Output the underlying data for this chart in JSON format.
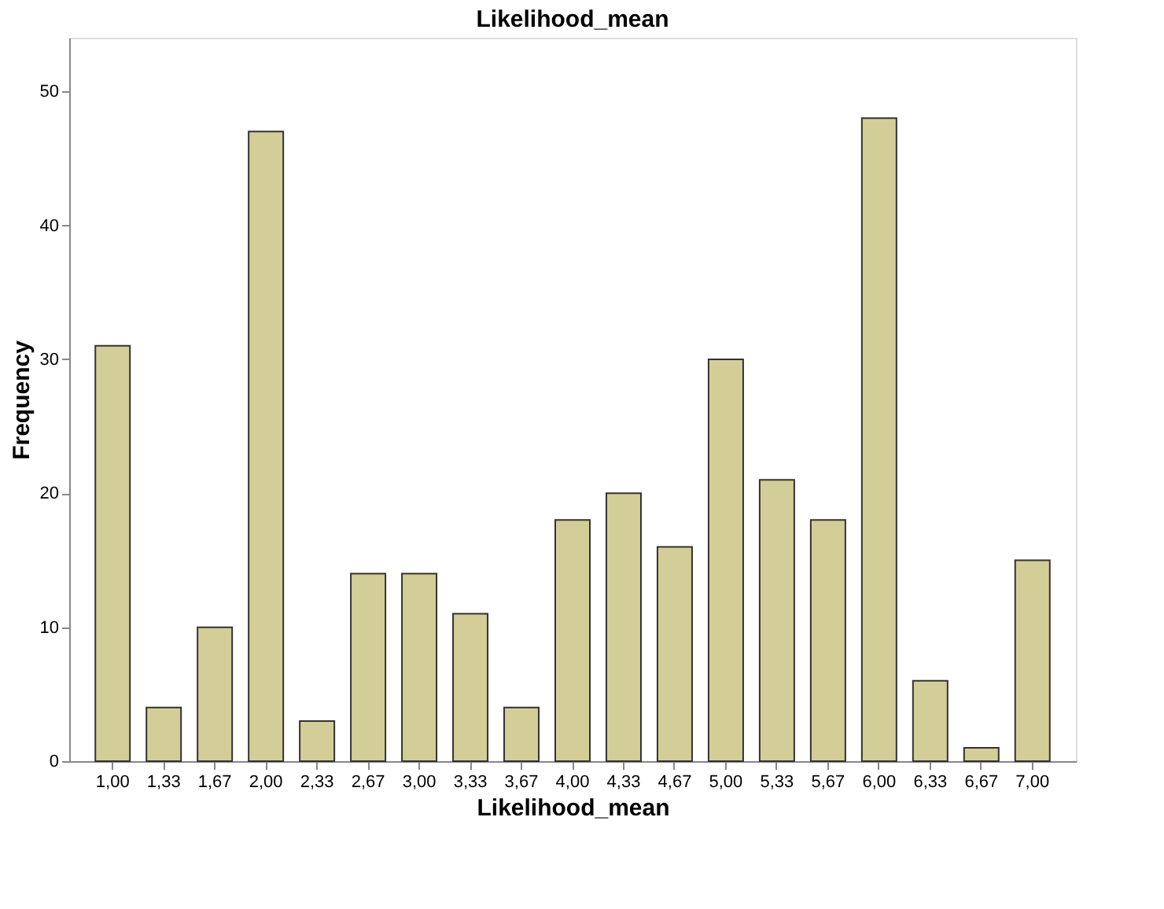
{
  "chart_data": {
    "type": "bar",
    "title": "Likelihood_mean",
    "xlabel": "Likelihood_mean",
    "ylabel": "Frequency",
    "categories": [
      "1,00",
      "1,33",
      "1,67",
      "2,00",
      "2,33",
      "2,67",
      "3,00",
      "3,33",
      "3,67",
      "4,00",
      "4,33",
      "4,67",
      "5,00",
      "5,33",
      "5,67",
      "6,00",
      "6,33",
      "6,67",
      "7,00"
    ],
    "values": [
      31,
      4,
      10,
      47,
      3,
      14,
      14,
      11,
      4,
      18,
      20,
      16,
      30,
      21,
      18,
      48,
      6,
      1,
      15
    ],
    "color": "#d3ce97",
    "ylim": [
      0,
      54
    ],
    "yticks": [
      0,
      10,
      20,
      30,
      40,
      50
    ],
    "grid": false
  }
}
